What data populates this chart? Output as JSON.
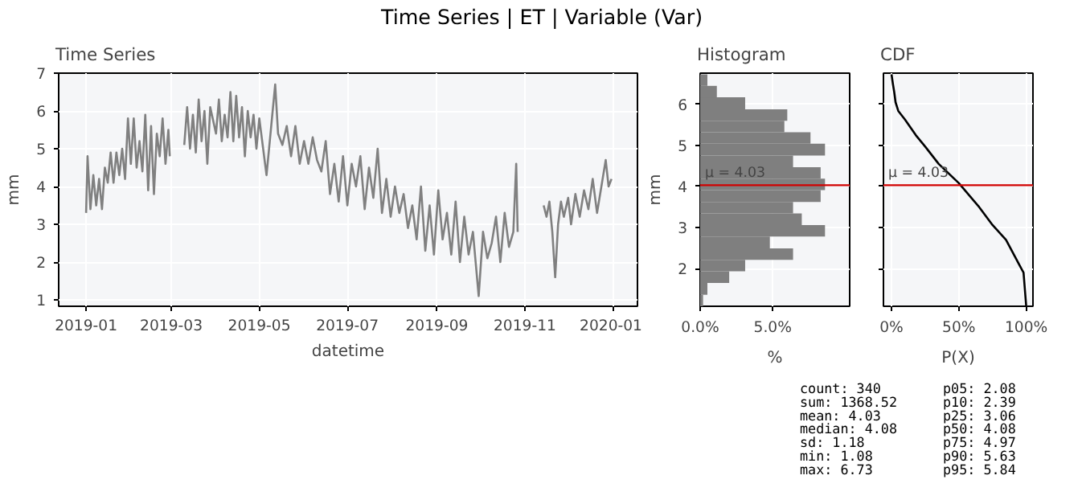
{
  "chart_data": [
    {
      "type": "other",
      "title": "Time Series | ET | Variable (Var)"
    },
    {
      "type": "line",
      "title": "Time Series",
      "xlabel": "datetime",
      "ylabel": "mm",
      "grid": true,
      "xlim": [
        "2018-12-13",
        "2020-01-18"
      ],
      "xticks": [
        "2019-01",
        "2019-03",
        "2019-05",
        "2019-07",
        "2019-09",
        "2019-11",
        "2020-01"
      ],
      "ylim": [
        0.83,
        7
      ],
      "yticks": [
        1,
        2,
        3,
        4,
        5,
        6,
        7
      ],
      "x": [
        "2019-01-01",
        "2019-01-02",
        "2019-01-04",
        "2019-01-06",
        "2019-01-08",
        "2019-01-10",
        "2019-01-12",
        "2019-01-14",
        "2019-01-16",
        "2019-01-18",
        "2019-01-20",
        "2019-01-22",
        "2019-01-24",
        "2019-01-26",
        "2019-01-28",
        "2019-01-30",
        "2019-02-01",
        "2019-02-03",
        "2019-02-05",
        "2019-02-07",
        "2019-02-09",
        "2019-02-11",
        "2019-02-13",
        "2019-02-15",
        "2019-02-17",
        "2019-02-19",
        "2019-02-21",
        "2019-02-23",
        "2019-02-25",
        "2019-02-27",
        "2019-02-28",
        "2019-03-05",
        "2019-03-10",
        "2019-03-12",
        "2019-03-14",
        "2019-03-16",
        "2019-03-18",
        "2019-03-20",
        "2019-03-22",
        "2019-03-24",
        "2019-03-26",
        "2019-03-28",
        "2019-04-01",
        "2019-04-03",
        "2019-04-05",
        "2019-04-07",
        "2019-04-09",
        "2019-04-11",
        "2019-04-13",
        "2019-04-15",
        "2019-04-17",
        "2019-04-19",
        "2019-04-21",
        "2019-04-23",
        "2019-04-25",
        "2019-04-27",
        "2019-04-29",
        "2019-05-01",
        "2019-05-03",
        "2019-05-06",
        "2019-05-09",
        "2019-05-12",
        "2019-05-14",
        "2019-05-17",
        "2019-05-20",
        "2019-05-23",
        "2019-05-26",
        "2019-05-29",
        "2019-06-01",
        "2019-06-04",
        "2019-06-07",
        "2019-06-10",
        "2019-06-13",
        "2019-06-16",
        "2019-06-19",
        "2019-06-22",
        "2019-06-25",
        "2019-06-28",
        "2019-07-01",
        "2019-07-04",
        "2019-07-07",
        "2019-07-10",
        "2019-07-13",
        "2019-07-16",
        "2019-07-19",
        "2019-07-22",
        "2019-07-25",
        "2019-07-28",
        "2019-07-31",
        "2019-08-03",
        "2019-08-06",
        "2019-08-09",
        "2019-08-12",
        "2019-08-15",
        "2019-08-18",
        "2019-08-21",
        "2019-08-24",
        "2019-08-27",
        "2019-08-30",
        "2019-09-02",
        "2019-09-05",
        "2019-09-08",
        "2019-09-11",
        "2019-09-14",
        "2019-09-17",
        "2019-09-20",
        "2019-09-23",
        "2019-09-26",
        "2019-09-30",
        "2019-10-03",
        "2019-10-06",
        "2019-10-09",
        "2019-10-12",
        "2019-10-15",
        "2019-10-18",
        "2019-10-21",
        "2019-10-24",
        "2019-10-26",
        "2019-10-27",
        "2019-11-05",
        "2019-11-14",
        "2019-11-16",
        "2019-11-18",
        "2019-11-20",
        "2019-11-22",
        "2019-11-24",
        "2019-11-26",
        "2019-11-28",
        "2019-12-01",
        "2019-12-03",
        "2019-12-06",
        "2019-12-09",
        "2019-12-12",
        "2019-12-15",
        "2019-12-18",
        "2019-12-21",
        "2019-12-24",
        "2019-12-27",
        "2019-12-29",
        "2019-12-31"
      ],
      "series": [
        {
          "color": "#808080",
          "values": [
            3.3,
            4.8,
            3.4,
            4.3,
            3.5,
            4.2,
            3.4,
            4.5,
            4.1,
            4.9,
            4.1,
            4.9,
            4.3,
            5.0,
            4.2,
            5.8,
            4.6,
            5.8,
            4.5,
            5.2,
            4.4,
            5.9,
            3.9,
            5.6,
            3.8,
            5.4,
            4.8,
            5.8,
            4.6,
            5.5,
            4.8,
            null,
            5.1,
            6.1,
            5.0,
            5.9,
            4.9,
            6.3,
            5.2,
            6.0,
            4.6,
            6.1,
            5.4,
            6.3,
            5.2,
            5.9,
            5.3,
            6.5,
            5.2,
            6.4,
            5.3,
            6.1,
            4.8,
            6.0,
            5.3,
            5.9,
            5.0,
            5.8,
            5.2,
            4.3,
            5.5,
            6.7,
            5.4,
            5.1,
            5.6,
            4.8,
            5.6,
            4.6,
            5.2,
            4.6,
            5.3,
            4.7,
            4.4,
            5.2,
            3.8,
            4.6,
            3.6,
            4.8,
            3.5,
            4.6,
            4.0,
            4.8,
            3.4,
            4.5,
            3.7,
            5.0,
            3.3,
            4.2,
            3.2,
            4.0,
            3.3,
            3.8,
            2.9,
            3.5,
            2.6,
            4.0,
            2.3,
            3.5,
            2.2,
            3.9,
            2.6,
            3.3,
            2.2,
            3.6,
            2.0,
            3.2,
            2.2,
            2.8,
            1.1,
            2.8,
            2.1,
            2.5,
            3.2,
            2.0,
            3.3,
            2.4,
            2.8,
            4.6,
            2.8,
            null,
            3.5,
            3.2,
            3.6,
            2.8,
            1.6,
            3.0,
            3.6,
            3.2,
            3.7,
            3.0,
            3.8,
            3.2,
            3.9,
            3.4,
            4.2,
            3.3,
            4.0,
            4.7,
            4.0,
            4.2
          ]
        }
      ]
    },
    {
      "type": "histogram",
      "title": "Histogram",
      "orientation": "horizontal",
      "xlabel": "%",
      "ylabel": "mm",
      "grid": true,
      "color": "#7f7f7f",
      "xlim": [
        0,
        10.3
      ],
      "xticks": [
        {
          "value": 0,
          "label": "0.0%"
        },
        {
          "value": 5,
          "label": "5.0%"
        }
      ],
      "ylim": [
        1.08,
        6.76
      ],
      "yticks": [
        2,
        3,
        4,
        5,
        6
      ],
      "bins": [
        1.08,
        1.36,
        1.65,
        1.93,
        2.21,
        2.49,
        2.78,
        3.06,
        3.34,
        3.62,
        3.91,
        4.19,
        4.47,
        4.75,
        5.04,
        5.32,
        5.6,
        5.88,
        6.17,
        6.45,
        6.73
      ],
      "values": [
        0.2,
        0.5,
        2.0,
        3.1,
        6.4,
        4.8,
        8.6,
        7.0,
        6.4,
        8.3,
        8.6,
        8.3,
        6.4,
        8.6,
        7.6,
        5.8,
        6.0,
        3.1,
        1.15,
        0.5
      ],
      "ref_lines": [
        {
          "axis": "y",
          "value": 4.03,
          "label": "μ = 4.03",
          "color": "#d00000"
        }
      ]
    },
    {
      "type": "line",
      "title": "CDF",
      "xlabel": "P(X)",
      "grid": true,
      "tick_labels": "x",
      "xlim": [
        -6,
        105
      ],
      "xticks": [
        {
          "value": 0,
          "label": "0%"
        },
        {
          "value": 50,
          "label": "50%"
        },
        {
          "value": 100,
          "label": "100%"
        }
      ],
      "ylim": [
        1.08,
        6.76
      ],
      "yticks": [
        {
          "value": 2,
          "label": null
        },
        {
          "value": 3,
          "label": null
        },
        {
          "value": 4,
          "label": null
        },
        {
          "value": 5,
          "label": null
        },
        {
          "value": 6,
          "label": null
        }
      ],
      "series": [
        {
          "color": "#000000",
          "x": [
            0,
            1,
            2,
            3,
            5,
            10,
            18,
            25,
            35,
            50,
            65,
            75,
            85,
            90,
            95,
            98,
            100
          ],
          "values": [
            6.73,
            6.5,
            6.3,
            6.05,
            5.84,
            5.63,
            5.25,
            4.97,
            4.55,
            4.08,
            3.5,
            3.06,
            2.7,
            2.39,
            2.08,
            1.9,
            1.08
          ]
        }
      ],
      "ref_lines": [
        {
          "axis": "y",
          "value": 4.03,
          "label": "μ = 4.03",
          "color": "#d00000"
        }
      ]
    },
    {
      "type": "other",
      "annotations": [
        "count: 340",
        "sum: 1368.52",
        "mean: 4.03",
        "median: 4.08",
        "sd: 1.18",
        "min: 1.08",
        "max: 6.73",
        "p05: 2.08",
        "p10: 2.39",
        "p25: 3.06",
        "p50: 4.08",
        "p75: 4.97",
        "p90: 5.63",
        "p95: 5.84"
      ]
    }
  ]
}
